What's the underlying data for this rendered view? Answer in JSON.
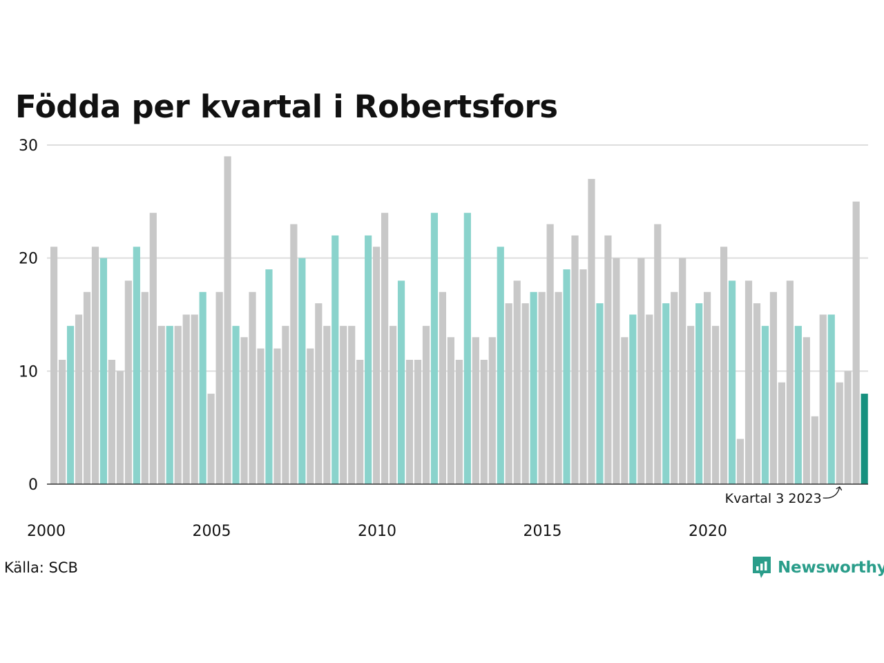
{
  "title": "Födda per kvartal i Robertsfors",
  "source": "Källa: SCB",
  "brand": {
    "name": "Newsworthy",
    "icon": "newsworthy-logo-icon"
  },
  "colors": {
    "other": "#c8c8c8",
    "q3": "#8ad3cc",
    "latest": "#16917f",
    "grid": "#dddddd",
    "axis": "#333333"
  },
  "chart_data": {
    "type": "bar",
    "title": "Födda per kvartal i Robertsfors",
    "xlabel": "",
    "ylabel": "",
    "ylim": [
      0,
      30
    ],
    "yticks": [
      0,
      10,
      20,
      30
    ],
    "xticks": [
      "2000",
      "2005",
      "2010",
      "2015",
      "2020"
    ],
    "grid": true,
    "highlight": "third quarter of each year; latest quarter dark",
    "start": {
      "year": 2000,
      "quarter": 1
    },
    "values": [
      21,
      11,
      14,
      15,
      17,
      21,
      20,
      11,
      10,
      18,
      21,
      17,
      24,
      14,
      14,
      14,
      15,
      15,
      17,
      8,
      17,
      29,
      14,
      13,
      17,
      12,
      19,
      12,
      14,
      23,
      20,
      12,
      16,
      14,
      22,
      14,
      14,
      11,
      22,
      21,
      24,
      14,
      18,
      11,
      11,
      14,
      24,
      17,
      13,
      11,
      24,
      13,
      11,
      13,
      21,
      16,
      18,
      16,
      17,
      17,
      23,
      17,
      19,
      22,
      19,
      27,
      16,
      22,
      20,
      13,
      15,
      20,
      15,
      23,
      16,
      17,
      20,
      14,
      16,
      17,
      14,
      21,
      18,
      4,
      18,
      16,
      14,
      17,
      9,
      18,
      14,
      13,
      6,
      15,
      15,
      9,
      10,
      25,
      8
    ],
    "annotation": {
      "text": "Kvartal 3 2023",
      "target_index": 95
    }
  }
}
